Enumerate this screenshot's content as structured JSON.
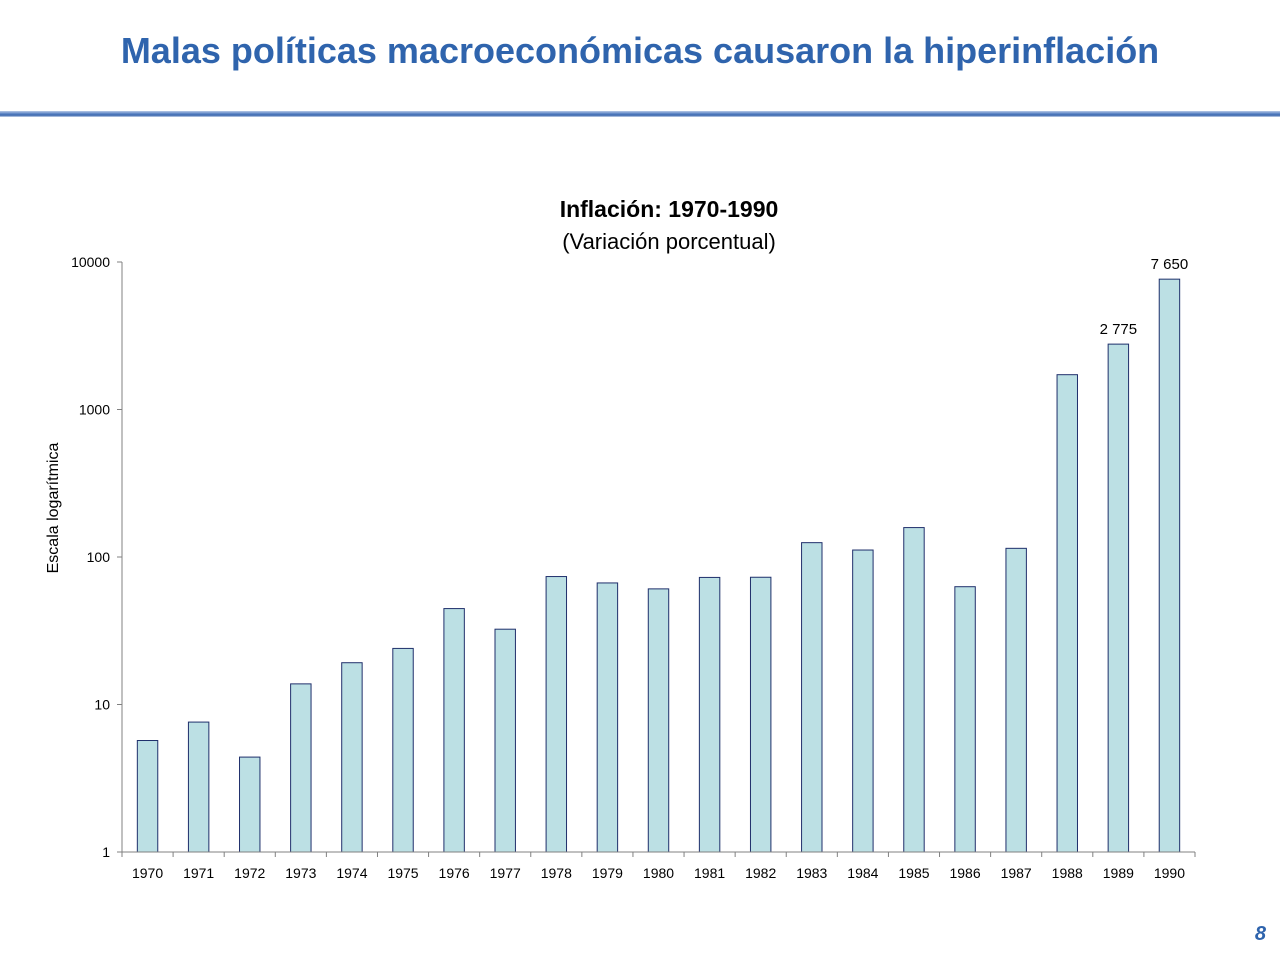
{
  "slide": {
    "title": "Malas políticas macroeconómicas causaron la hiperinflación",
    "page_number": "8"
  },
  "colors": {
    "title": "#2F64AD",
    "bar_fill": "#BCE0E4",
    "bar_stroke": "#1F2F6B",
    "axis": "#808080"
  },
  "chart_data": {
    "type": "bar",
    "title": "Inflación: 1970-1990",
    "subtitle": "(Variación porcentual)",
    "xlabel": "",
    "ylabel": "Escala logarítmica",
    "y_scale": "log",
    "ylim": [
      1,
      10000
    ],
    "y_ticks": [
      "1",
      "10",
      "100",
      "1000",
      "10000"
    ],
    "y_tick_values": [
      1,
      10,
      100,
      1000,
      10000
    ],
    "grid": false,
    "categories": [
      "1970",
      "1971",
      "1972",
      "1973",
      "1974",
      "1975",
      "1976",
      "1977",
      "1978",
      "1979",
      "1980",
      "1981",
      "1982",
      "1983",
      "1984",
      "1985",
      "1986",
      "1987",
      "1988",
      "1989",
      "1990"
    ],
    "values": [
      5.7,
      7.6,
      4.4,
      13.8,
      19.2,
      24.0,
      44.7,
      32.4,
      73.7,
      66.7,
      60.8,
      72.7,
      72.9,
      125.1,
      111.5,
      158.3,
      62.9,
      114.5,
      1722,
      2775,
      7650
    ],
    "data_labels": [
      {
        "index": 19,
        "text": "2 775"
      },
      {
        "index": 20,
        "text": "7 650"
      }
    ]
  }
}
